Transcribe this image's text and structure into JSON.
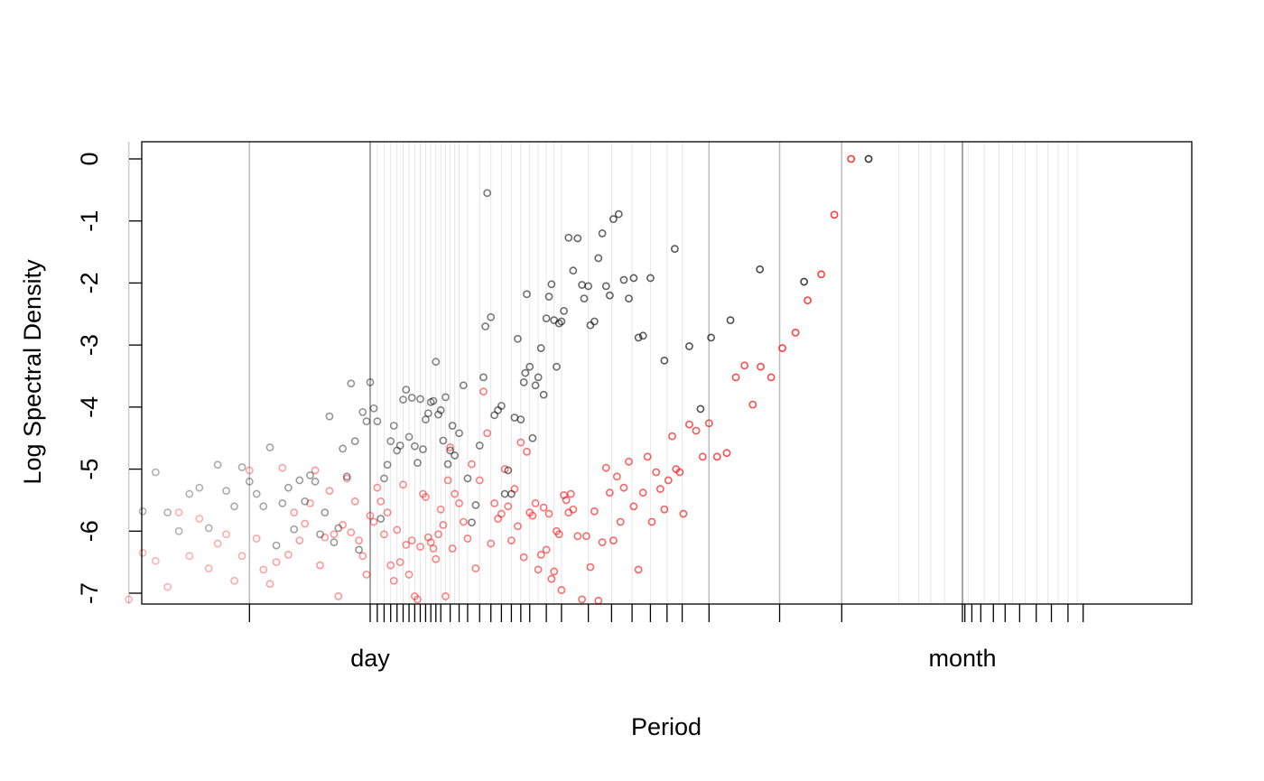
{
  "chart_data": {
    "type": "scatter",
    "title": "",
    "xlabel": "Period",
    "ylabel": "Log Spectral Density",
    "x_scale": "log-period",
    "x_tick_labels": [
      "day",
      "month"
    ],
    "y_ticks": [
      "0",
      "-1",
      "-2",
      "-3",
      "-4",
      "-5",
      "-6",
      "-7"
    ],
    "ylim": [
      -7.15,
      0.28
    ],
    "grid": true,
    "colors": {
      "black_series": "#000000",
      "red_series": "#ff0000",
      "grid_major": "#999999",
      "grid_minor": "#e6e6e6"
    },
    "series": [
      {
        "color": "#000000",
        "points": [
          [
            6.5,
            -5.68
          ],
          [
            7,
            -5.05
          ],
          [
            7.5,
            -5.7
          ],
          [
            8,
            -6
          ],
          [
            8.5,
            -5.4
          ],
          [
            9,
            -5.3
          ],
          [
            9.5,
            -5.95
          ],
          [
            10,
            -4.93
          ],
          [
            10.5,
            -5.35
          ],
          [
            11,
            -5.6
          ],
          [
            11.5,
            -4.97
          ],
          [
            12,
            -5.2
          ],
          [
            12.5,
            -5.4
          ],
          [
            13,
            -5.6
          ],
          [
            13.5,
            -4.65
          ],
          [
            14,
            -6.23
          ],
          [
            14.5,
            -5.55
          ],
          [
            15,
            -5.3
          ],
          [
            15.5,
            -5.97
          ],
          [
            16,
            -5.18
          ],
          [
            16.5,
            -5.52
          ],
          [
            17,
            -5.1
          ],
          [
            17.5,
            -5.2
          ],
          [
            18,
            -6.05
          ],
          [
            18.5,
            -5.7
          ],
          [
            19,
            -4.15
          ],
          [
            19.5,
            -6.18
          ],
          [
            20,
            -5.95
          ],
          [
            20.5,
            -4.67
          ],
          [
            21,
            -5.12
          ],
          [
            21.5,
            -3.62
          ],
          [
            22,
            -4.55
          ],
          [
            22.5,
            -6.3
          ],
          [
            23,
            -4.08
          ],
          [
            23.5,
            -4.23
          ],
          [
            24,
            -3.6
          ],
          [
            24.5,
            -4.02
          ],
          [
            25,
            -4.23
          ],
          [
            25.5,
            -5.8
          ],
          [
            26,
            -5.15
          ],
          [
            26.5,
            -4.93
          ],
          [
            27,
            -4.55
          ],
          [
            27.5,
            -4.3
          ],
          [
            28,
            -4.7
          ],
          [
            28.5,
            -4.62
          ],
          [
            29,
            -3.88
          ],
          [
            29.5,
            -3.72
          ],
          [
            30,
            -4.48
          ],
          [
            30.5,
            -3.85
          ],
          [
            31,
            -4.63
          ],
          [
            31.5,
            -4.9
          ],
          [
            32,
            -3.87
          ],
          [
            32.5,
            -4.68
          ],
          [
            33,
            -4.2
          ],
          [
            33.5,
            -4.1
          ],
          [
            34,
            -3.92
          ],
          [
            34.5,
            -3.9
          ],
          [
            35,
            -3.27
          ],
          [
            35.5,
            -4.12
          ],
          [
            36,
            -4.05
          ],
          [
            36.5,
            -4.54
          ],
          [
            37,
            -3.84
          ],
          [
            37.5,
            -4.92
          ],
          [
            38,
            -4.7
          ],
          [
            38.5,
            -4.3
          ],
          [
            39,
            -4.78
          ],
          [
            40,
            -4.42
          ],
          [
            41,
            -3.65
          ],
          [
            42,
            -5.15
          ],
          [
            43,
            -5.86
          ],
          [
            44,
            -5.58
          ],
          [
            45,
            -4.62
          ],
          [
            46,
            -3.52
          ],
          [
            46.5,
            -2.7
          ],
          [
            47,
            -0.55
          ],
          [
            48,
            -2.55
          ],
          [
            49,
            -4.13
          ],
          [
            50,
            -4.05
          ],
          [
            51,
            -3.98
          ],
          [
            52,
            -5.4
          ],
          [
            53,
            -5.02
          ],
          [
            54,
            -5.4
          ],
          [
            55,
            -4.17
          ],
          [
            56,
            -2.9
          ],
          [
            57,
            -4.2
          ],
          [
            58,
            -3.6
          ],
          [
            58.5,
            -3.45
          ],
          [
            59,
            -2.18
          ],
          [
            60,
            -3.35
          ],
          [
            61,
            -4.5
          ],
          [
            62,
            -3.65
          ],
          [
            63,
            -3.52
          ],
          [
            64,
            -3.05
          ],
          [
            65,
            -3.8
          ],
          [
            66,
            -2.57
          ],
          [
            67,
            -2.22
          ],
          [
            68,
            -2.02
          ],
          [
            69,
            -2.6
          ],
          [
            70,
            -3.35
          ],
          [
            71,
            -2.65
          ],
          [
            72,
            -2.62
          ],
          [
            73,
            -2.45
          ],
          [
            75,
            -1.27
          ],
          [
            77,
            -1.8
          ],
          [
            79,
            -1.28
          ],
          [
            81,
            -2.03
          ],
          [
            82,
            -2.25
          ],
          [
            84,
            -2.05
          ],
          [
            85,
            -2.68
          ],
          [
            87,
            -2.62
          ],
          [
            89,
            -1.6
          ],
          [
            91,
            -1.2
          ],
          [
            93,
            -2.05
          ],
          [
            95,
            -2.2
          ],
          [
            97,
            -0.97
          ],
          [
            100,
            -0.89
          ],
          [
            103,
            -1.95
          ],
          [
            106,
            -2.25
          ],
          [
            109,
            -1.92
          ],
          [
            112,
            -2.88
          ],
          [
            115,
            -2.85
          ],
          [
            120,
            -1.92
          ],
          [
            130,
            -3.25
          ],
          [
            138,
            -1.45
          ],
          [
            150,
            -3.02
          ],
          [
            160,
            -4.03
          ],
          [
            170,
            -2.88
          ],
          [
            190,
            -2.6
          ],
          [
            225,
            -1.78
          ],
          [
            290,
            -1.98
          ],
          [
            420,
            0
          ]
        ]
      },
      {
        "color": "#ff0000",
        "points": [
          [
            6,
            -7.1
          ],
          [
            6.5,
            -6.35
          ],
          [
            7,
            -6.48
          ],
          [
            7.5,
            -6.9
          ],
          [
            8,
            -5.7
          ],
          [
            8.5,
            -6.4
          ],
          [
            9,
            -5.8
          ],
          [
            9.5,
            -6.6
          ],
          [
            10,
            -6.2
          ],
          [
            10.5,
            -6.05
          ],
          [
            11,
            -6.8
          ],
          [
            11.5,
            -6.4
          ],
          [
            12,
            -5.02
          ],
          [
            12.5,
            -6.12
          ],
          [
            13,
            -6.62
          ],
          [
            13.5,
            -6.85
          ],
          [
            14,
            -6.5
          ],
          [
            14.5,
            -4.98
          ],
          [
            15,
            -6.38
          ],
          [
            15.5,
            -5.7
          ],
          [
            16,
            -6.15
          ],
          [
            16.5,
            -5.88
          ],
          [
            17,
            -5.55
          ],
          [
            17.5,
            -5.02
          ],
          [
            18,
            -6.55
          ],
          [
            18.5,
            -6.1
          ],
          [
            19,
            -5.35
          ],
          [
            19.5,
            -6.05
          ],
          [
            20,
            -7.05
          ],
          [
            20.5,
            -5.9
          ],
          [
            21,
            -5.15
          ],
          [
            21.5,
            -6.02
          ],
          [
            22,
            -5.52
          ],
          [
            22.5,
            -6.15
          ],
          [
            23,
            -6.4
          ],
          [
            23.5,
            -6.7
          ],
          [
            24,
            -5.75
          ],
          [
            24.5,
            -5.85
          ],
          [
            25,
            -5.3
          ],
          [
            25.5,
            -5.52
          ],
          [
            26,
            -6.05
          ],
          [
            26.5,
            -5.7
          ],
          [
            27,
            -6.55
          ],
          [
            27.5,
            -6.8
          ],
          [
            28,
            -5.98
          ],
          [
            28.5,
            -6.5
          ],
          [
            29,
            -5.25
          ],
          [
            29.5,
            -6.22
          ],
          [
            30,
            -6.7
          ],
          [
            30.5,
            -6.15
          ],
          [
            31,
            -7.05
          ],
          [
            31.5,
            -7.1
          ],
          [
            32,
            -6.25
          ],
          [
            32.5,
            -5.4
          ],
          [
            33,
            -5.45
          ],
          [
            33.5,
            -6.1
          ],
          [
            34,
            -6.18
          ],
          [
            34.5,
            -6.28
          ],
          [
            35,
            -6.45
          ],
          [
            35.5,
            -6.05
          ],
          [
            36,
            -5.65
          ],
          [
            36.5,
            -5.9
          ],
          [
            37,
            -7.05
          ],
          [
            37.5,
            -5.18
          ],
          [
            38,
            -4.65
          ],
          [
            38.5,
            -6.28
          ],
          [
            39,
            -5.4
          ],
          [
            40,
            -5.55
          ],
          [
            41,
            -5.85
          ],
          [
            42,
            -6.12
          ],
          [
            43,
            -4.92
          ],
          [
            44,
            -6.6
          ],
          [
            45,
            -5.18
          ],
          [
            46,
            -3.75
          ],
          [
            47,
            -4.42
          ],
          [
            48,
            -6.2
          ],
          [
            49,
            -5.55
          ],
          [
            50,
            -5.8
          ],
          [
            51,
            -5.72
          ],
          [
            52,
            -5.0
          ],
          [
            53,
            -5.6
          ],
          [
            54,
            -6.15
          ],
          [
            55,
            -5.32
          ],
          [
            56,
            -5.92
          ],
          [
            57,
            -4.57
          ],
          [
            58,
            -6.42
          ],
          [
            59,
            -4.72
          ],
          [
            60,
            -5.7
          ],
          [
            61,
            -5.75
          ],
          [
            62,
            -5.55
          ],
          [
            63,
            -6.62
          ],
          [
            64,
            -6.38
          ],
          [
            65,
            -5.62
          ],
          [
            66,
            -6.3
          ],
          [
            67,
            -5.72
          ],
          [
            68,
            -6.77
          ],
          [
            69,
            -6.65
          ],
          [
            70,
            -6.0
          ],
          [
            71,
            -6.05
          ],
          [
            72,
            -6.95
          ],
          [
            73,
            -5.42
          ],
          [
            74,
            -5.5
          ],
          [
            75,
            -5.7
          ],
          [
            76,
            -5.4
          ],
          [
            77,
            -5.65
          ],
          [
            79,
            -6.08
          ],
          [
            81,
            -7.1
          ],
          [
            83,
            -6.08
          ],
          [
            85,
            -6.58
          ],
          [
            87,
            -5.68
          ],
          [
            89,
            -7.12
          ],
          [
            91,
            -6.18
          ],
          [
            93,
            -4.98
          ],
          [
            95,
            -5.38
          ],
          [
            97,
            -6.15
          ],
          [
            99,
            -5.12
          ],
          [
            101,
            -5.85
          ],
          [
            103,
            -5.3
          ],
          [
            106,
            -4.88
          ],
          [
            109,
            -5.6
          ],
          [
            112,
            -6.62
          ],
          [
            115,
            -5.38
          ],
          [
            118,
            -4.8
          ],
          [
            121,
            -5.85
          ],
          [
            124,
            -5.05
          ],
          [
            127,
            -5.32
          ],
          [
            130,
            -5.65
          ],
          [
            133,
            -5.18
          ],
          [
            136,
            -4.47
          ],
          [
            139,
            -5.0
          ],
          [
            142,
            -5.05
          ],
          [
            145,
            -5.72
          ],
          [
            150,
            -4.28
          ],
          [
            156,
            -4.38
          ],
          [
            162,
            -4.8
          ],
          [
            168,
            -4.26
          ],
          [
            176,
            -4.8
          ],
          [
            186,
            -4.74
          ],
          [
            196,
            -3.52
          ],
          [
            206,
            -3.33
          ],
          [
            216,
            -3.96
          ],
          [
            226,
            -3.35
          ],
          [
            240,
            -3.52
          ],
          [
            256,
            -3.05
          ],
          [
            276,
            -2.8
          ],
          [
            296,
            -2.28
          ],
          [
            320,
            -1.86
          ],
          [
            345,
            -0.9
          ],
          [
            380,
            0
          ]
        ]
      }
    ]
  }
}
